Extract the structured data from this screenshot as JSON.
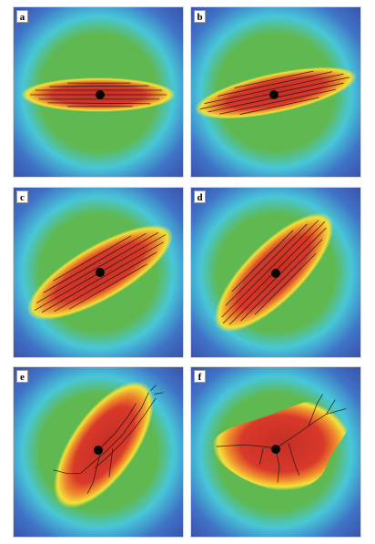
{
  "panels": [
    {
      "id": "a",
      "label": "a",
      "orientation_deg": 0
    },
    {
      "id": "b",
      "label": "b",
      "orientation_deg": -12
    },
    {
      "id": "c",
      "label": "c",
      "orientation_deg": -30
    },
    {
      "id": "d",
      "label": "d",
      "orientation_deg": -45
    },
    {
      "id": "e",
      "label": "e",
      "orientation_deg": -55
    },
    {
      "id": "f",
      "label": "f",
      "orientation_deg": -25
    }
  ],
  "colors": {
    "background": "#ffffff",
    "field_outer": "#3a50a8",
    "field_blue": "#3f73c6",
    "field_cyan": "#48c7d8",
    "field_green": "#5fb950",
    "field_yellow": "#f3e23a",
    "field_orange": "#ef8a2c",
    "field_red": "#d8392a",
    "crack": "#151515",
    "nucleus": "#050505"
  }
}
